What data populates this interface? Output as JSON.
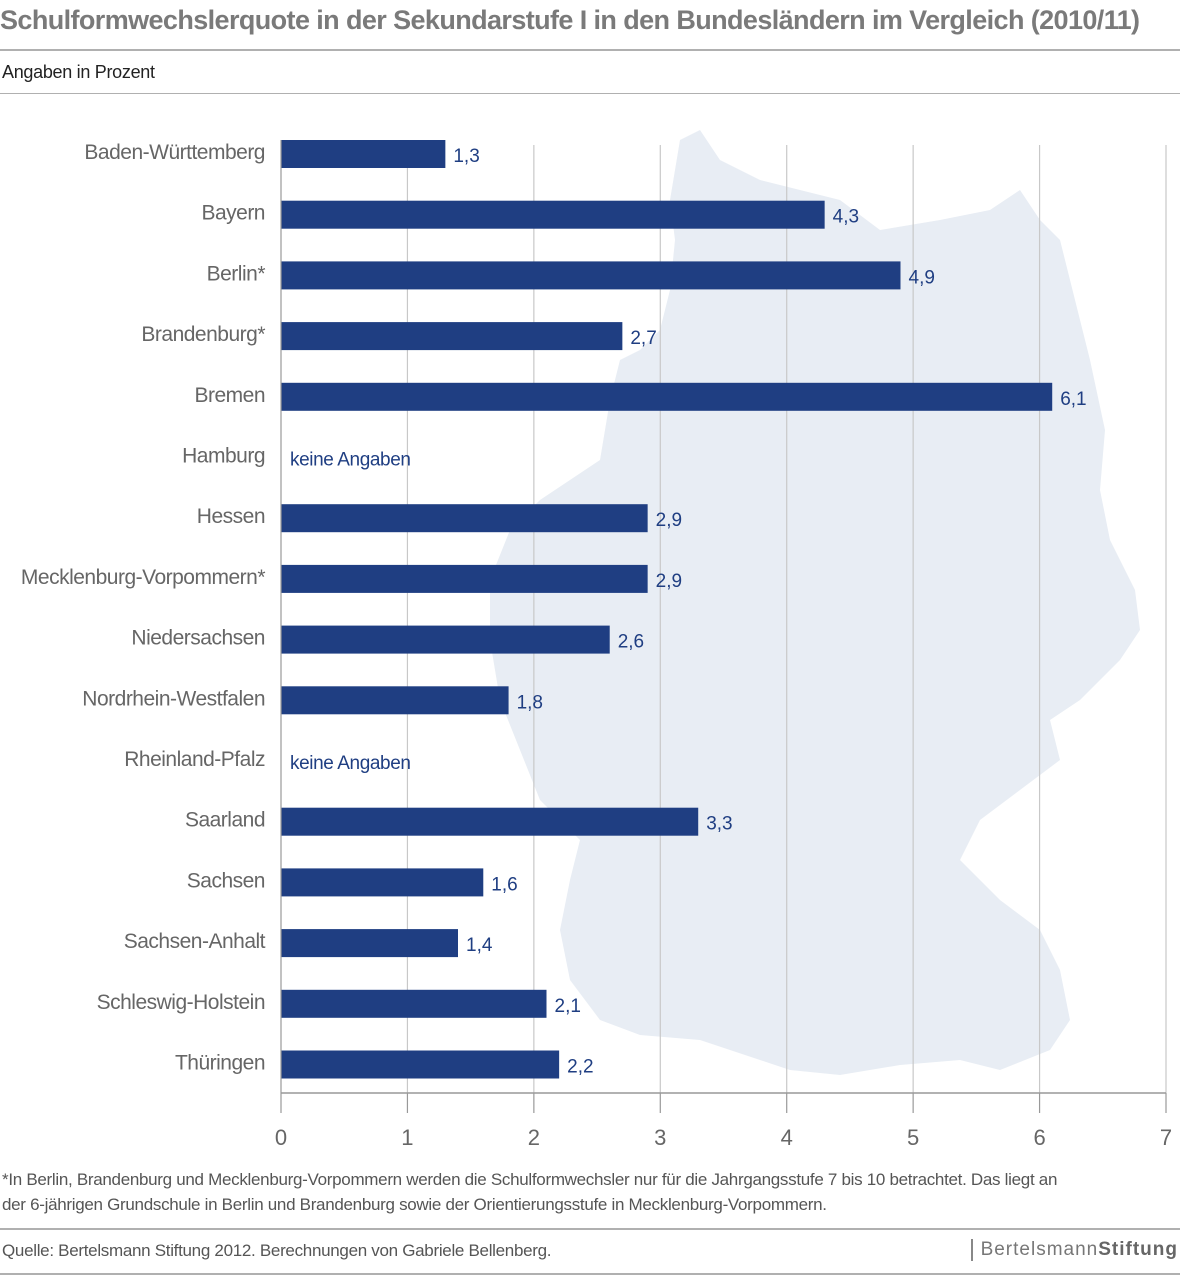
{
  "title": "Schulformwechslerquote in der Sekundarstufe I in den Bundesländern im Vergleich (2010/11)",
  "subtitle": "Angaben in Prozent",
  "footnote_lines": [
    "*In Berlin, Brandenburg und Mecklenburg-Vorpommern werden die Schulformwechsler nur für die Jahrgangsstufe 7 bis 10 betrachtet. Das liegt an",
    "der 6-jährigen Grundschule in Berlin und Brandenburg sowie der Orientierungsstufe in Mecklenburg-Vorpommern."
  ],
  "source": "Quelle: Bertelsmann Stiftung 2012. Berechnungen von Gabriele Bellenberg.",
  "logo": {
    "part1": "Bertelsmann",
    "part2": "Stiftung"
  },
  "colors": {
    "bar": "#1f3e82",
    "grid": "#c8c8c8",
    "map": "#e8edf4",
    "text": "#555555"
  },
  "chart_data": {
    "type": "bar",
    "orientation": "horizontal",
    "categories": [
      "Baden-Württemberg",
      "Bayern",
      "Berlin*",
      "Brandenburg*",
      "Bremen",
      "Hamburg",
      "Hessen",
      "Mecklenburg-Vorpommern*",
      "Niedersachsen",
      "Nordrhein-Westfalen",
      "Rheinland-Pfalz",
      "Saarland",
      "Sachsen",
      "Sachsen-Anhalt",
      "Schleswig-Holstein",
      "Thüringen"
    ],
    "values": [
      1.3,
      4.3,
      4.9,
      2.7,
      6.1,
      null,
      2.9,
      2.9,
      2.6,
      1.8,
      null,
      3.3,
      1.6,
      1.4,
      2.1,
      2.2
    ],
    "value_labels": [
      "1,3",
      "4,3",
      "4,9",
      "2,7",
      "6,1",
      "keine Angaben",
      "2,9",
      "2,9",
      "2,6",
      "1,8",
      "keine Angaben",
      "3,3",
      "1,6",
      "1,4",
      "2,1",
      "2,2"
    ],
    "xlim": [
      0,
      7
    ],
    "xticks": [
      "0",
      "1",
      "2",
      "3",
      "4",
      "5",
      "6",
      "7"
    ],
    "grid": true,
    "background": "map of Germany"
  }
}
